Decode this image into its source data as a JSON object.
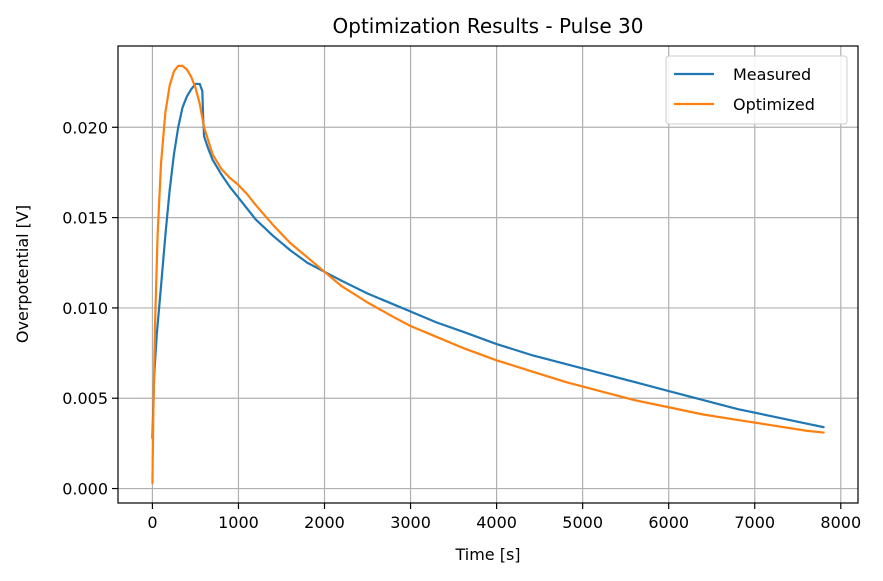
{
  "chart_data": {
    "type": "line",
    "title": "Optimization Results - Pulse 30",
    "xlabel": "Time [s]",
    "ylabel": "Overpotential [V]",
    "xlim": [
      -400,
      8200
    ],
    "ylim": [
      -0.0008,
      0.0245
    ],
    "xticks": [
      0,
      1000,
      2000,
      3000,
      4000,
      5000,
      6000,
      7000,
      8000
    ],
    "yticks": [
      0.0,
      0.005,
      0.01,
      0.015,
      0.02
    ],
    "xtick_labels": [
      "0",
      "1000",
      "2000",
      "3000",
      "4000",
      "5000",
      "6000",
      "7000",
      "8000"
    ],
    "ytick_labels": [
      "0.000",
      "0.005",
      "0.010",
      "0.015",
      "0.020"
    ],
    "grid": true,
    "legend_position": "top-right",
    "series": [
      {
        "name": "Measured",
        "color": "#1f77b4",
        "x": [
          0,
          20,
          50,
          100,
          150,
          200,
          250,
          300,
          350,
          400,
          450,
          500,
          550,
          580,
          590,
          600,
          650,
          700,
          800,
          900,
          1000,
          1200,
          1400,
          1600,
          1800,
          2000,
          2200,
          2500,
          2800,
          3000,
          3300,
          3600,
          4000,
          4400,
          4800,
          5200,
          5600,
          6000,
          6400,
          6800,
          7200,
          7600,
          7800
        ],
        "y": [
          0.0028,
          0.0062,
          0.0085,
          0.0112,
          0.014,
          0.0165,
          0.0185,
          0.02,
          0.0211,
          0.0217,
          0.0221,
          0.0224,
          0.0224,
          0.022,
          0.0205,
          0.0195,
          0.0188,
          0.0182,
          0.0174,
          0.0167,
          0.0161,
          0.0149,
          0.014,
          0.0132,
          0.0125,
          0.012,
          0.0115,
          0.0108,
          0.0102,
          0.0098,
          0.0092,
          0.0087,
          0.008,
          0.0074,
          0.0069,
          0.0064,
          0.0059,
          0.0054,
          0.0049,
          0.0044,
          0.004,
          0.0036,
          0.0034
        ]
      },
      {
        "name": "Optimized",
        "color": "#ff7f0e",
        "x": [
          0,
          10,
          30,
          60,
          100,
          150,
          200,
          250,
          300,
          350,
          400,
          450,
          500,
          550,
          600,
          700,
          800,
          900,
          1000,
          1100,
          1200,
          1400,
          1600,
          1800,
          2000,
          2200,
          2500,
          2800,
          3000,
          3300,
          3600,
          4000,
          4400,
          4800,
          5200,
          5600,
          6000,
          6400,
          6800,
          7200,
          7600,
          7800
        ],
        "y": [
          0.0003,
          0.004,
          0.009,
          0.014,
          0.018,
          0.0208,
          0.0223,
          0.0231,
          0.0234,
          0.0234,
          0.0232,
          0.0228,
          0.0222,
          0.0213,
          0.02,
          0.0185,
          0.0177,
          0.0172,
          0.0168,
          0.0163,
          0.0157,
          0.0146,
          0.0136,
          0.0128,
          0.012,
          0.0112,
          0.0103,
          0.0095,
          0.009,
          0.0084,
          0.0078,
          0.0071,
          0.0065,
          0.0059,
          0.0054,
          0.0049,
          0.0045,
          0.0041,
          0.0038,
          0.0035,
          0.0032,
          0.0031
        ]
      }
    ]
  }
}
